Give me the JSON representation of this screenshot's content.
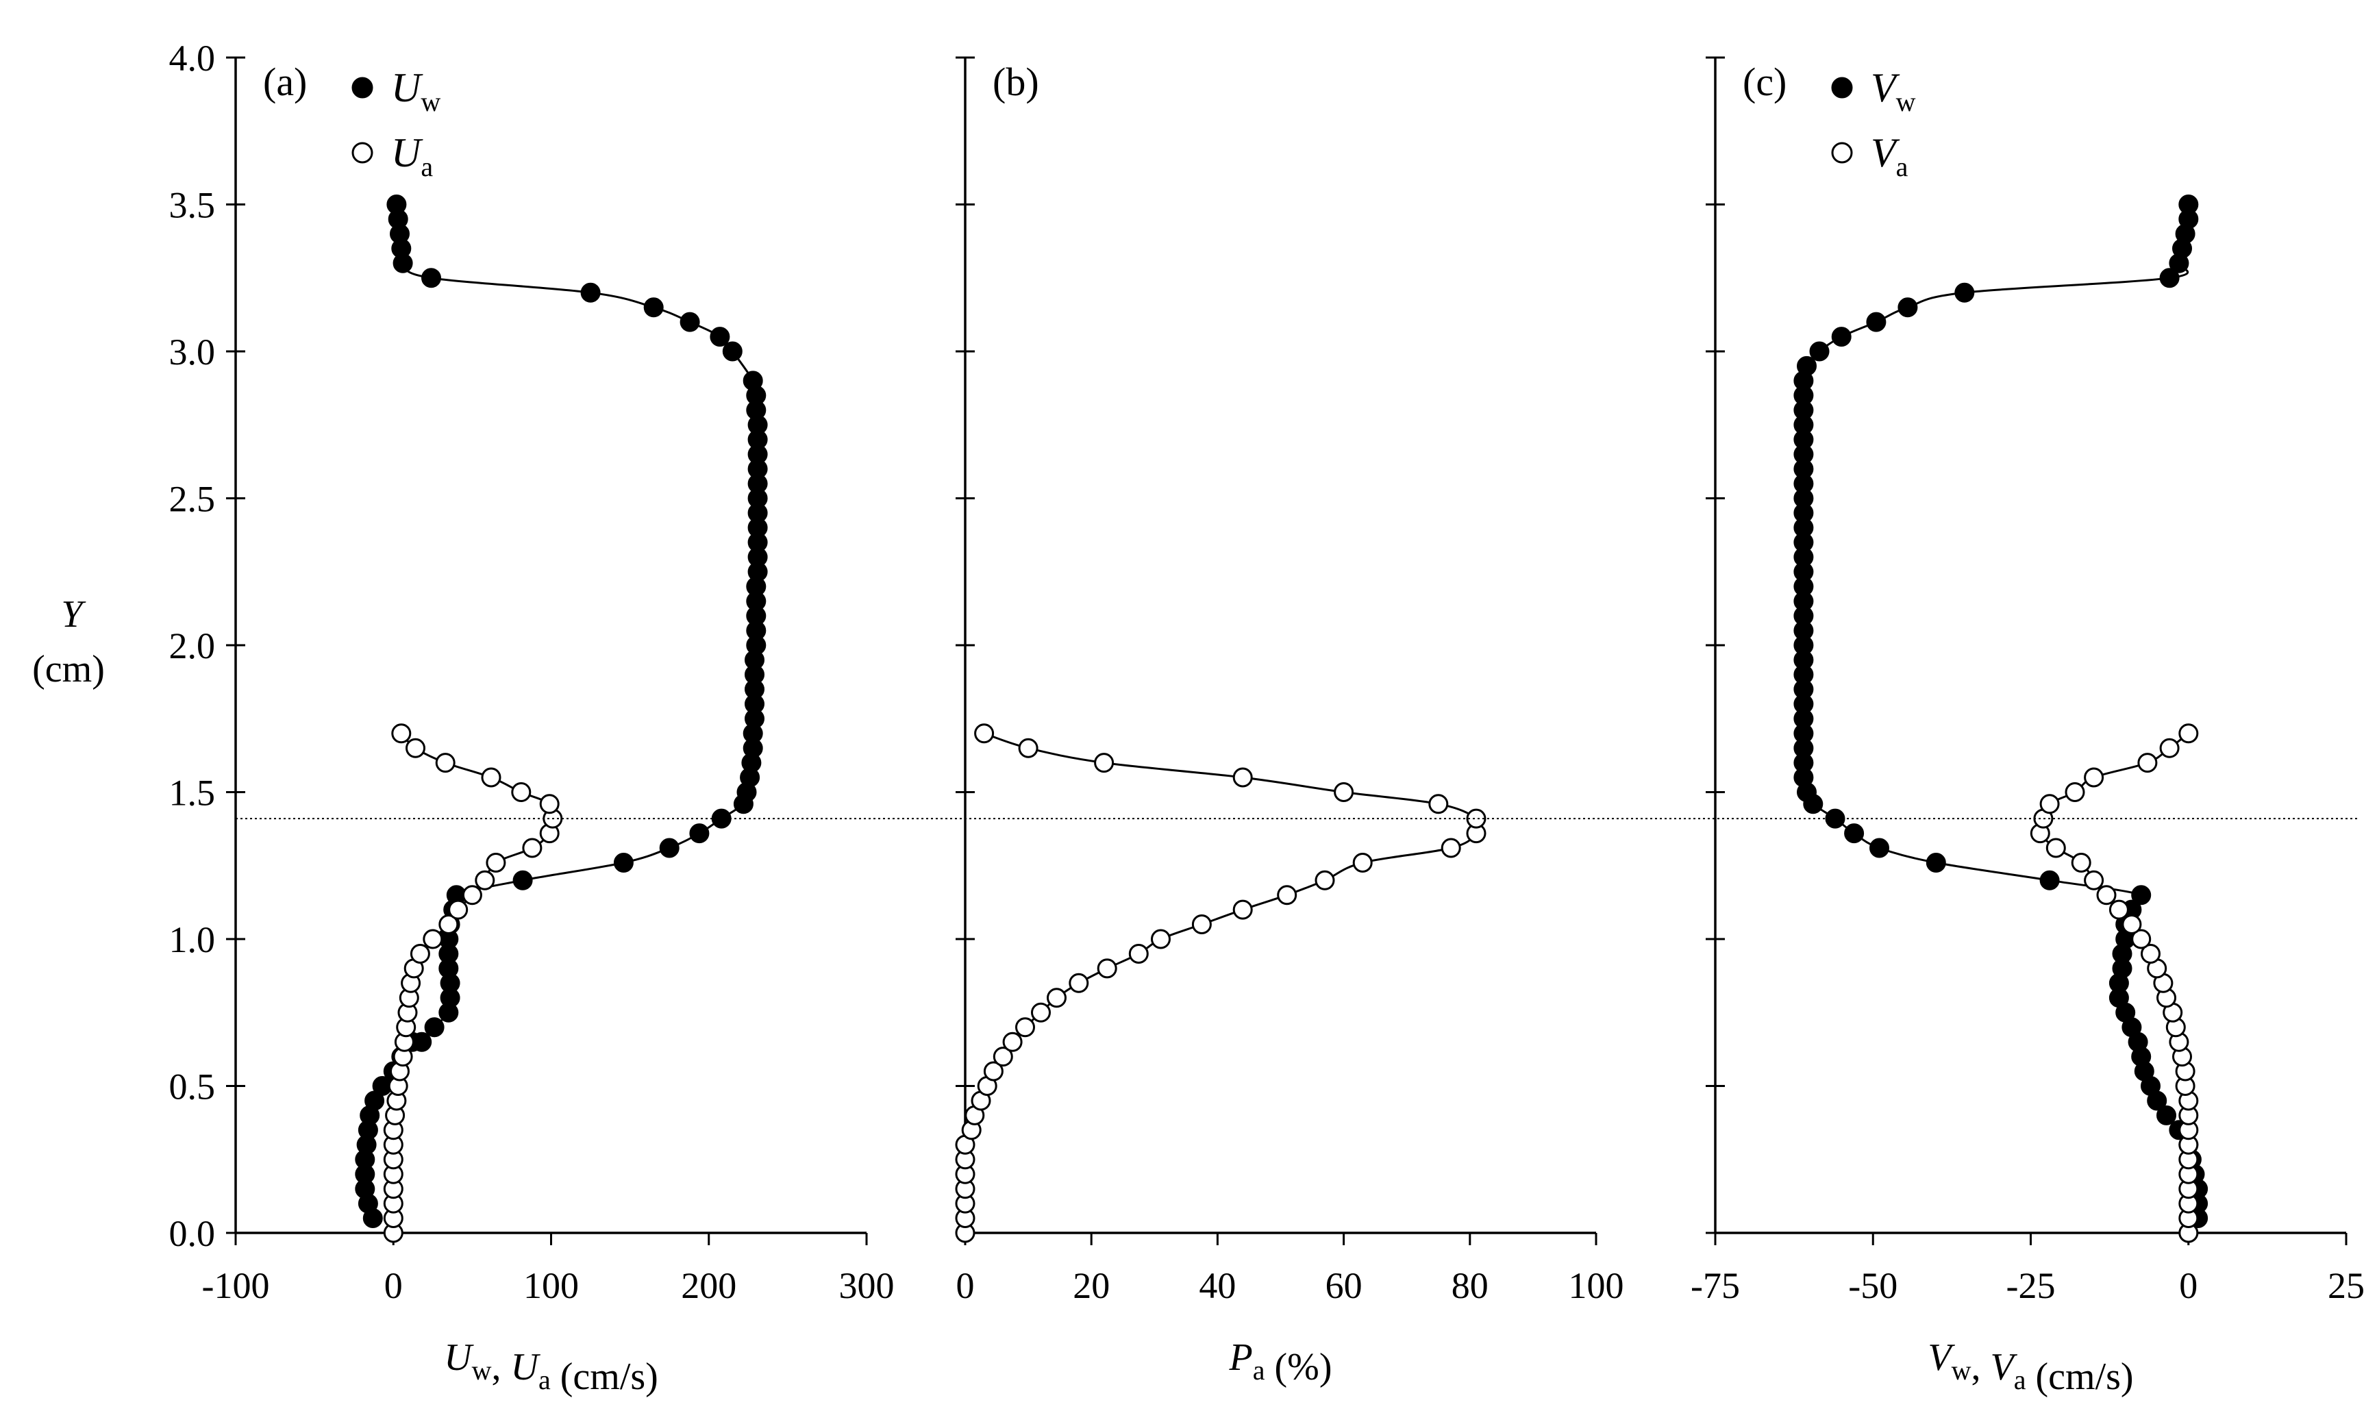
{
  "y_axis": {
    "label": "Y",
    "unit": "(cm)",
    "ticks": [
      "0.0",
      "0.5",
      "1.0",
      "1.5",
      "2.0",
      "2.5",
      "3.0",
      "3.5",
      "4.0"
    ]
  },
  "reference_line_y": 1.41,
  "chart_data": [
    {
      "type": "line",
      "panel_label": "(a)",
      "xlabel": {
        "parts": [
          {
            "italic": "U",
            "sub": "w"
          },
          {
            "text": ", "
          },
          {
            "italic": "U",
            "sub": "a"
          },
          {
            "text": " (cm/s)"
          }
        ]
      },
      "xlim": [
        -100,
        300
      ],
      "ylim": [
        0,
        4
      ],
      "xticks": [
        -100,
        0,
        100,
        200,
        300
      ],
      "xtick_labels": [
        "-100",
        "0",
        "100",
        "200",
        "300"
      ],
      "yticks": [
        0,
        0.5,
        1,
        1.5,
        2,
        2.5,
        3,
        3.5,
        4
      ],
      "legend": [
        {
          "marker": "filled",
          "sym": "U",
          "sub": "w"
        },
        {
          "marker": "open",
          "sym": "U",
          "sub": "a"
        }
      ],
      "series": [
        {
          "name": "Uw",
          "marker": "filled",
          "points": [
            [
              -13,
              0.05
            ],
            [
              -16,
              0.1
            ],
            [
              -18,
              0.15
            ],
            [
              -18,
              0.2
            ],
            [
              -18,
              0.25
            ],
            [
              -17,
              0.3
            ],
            [
              -16,
              0.35
            ],
            [
              -15,
              0.4
            ],
            [
              -12,
              0.45
            ],
            [
              -7,
              0.5
            ],
            [
              0,
              0.55
            ],
            [
              5,
              0.6
            ],
            [
              12,
              0.65
            ],
            [
              18,
              0.65
            ],
            [
              26,
              0.7
            ],
            [
              35,
              0.75
            ],
            [
              36,
              0.8
            ],
            [
              36,
              0.85
            ],
            [
              35,
              0.9
            ],
            [
              35,
              0.95
            ],
            [
              35,
              1.0
            ],
            [
              36,
              1.05
            ],
            [
              38,
              1.1
            ],
            [
              40,
              1.15
            ],
            [
              82,
              1.2
            ],
            [
              146,
              1.26
            ],
            [
              175,
              1.31
            ],
            [
              194,
              1.36
            ],
            [
              208,
              1.41
            ],
            [
              222,
              1.46
            ],
            [
              224,
              1.5
            ],
            [
              226,
              1.55
            ],
            [
              227,
              1.6
            ],
            [
              228,
              1.65
            ],
            [
              228,
              1.7
            ],
            [
              229,
              1.75
            ],
            [
              229,
              1.8
            ],
            [
              229,
              1.85
            ],
            [
              229,
              1.9
            ],
            [
              229,
              1.95
            ],
            [
              230,
              2.0
            ],
            [
              230,
              2.05
            ],
            [
              230,
              2.1
            ],
            [
              230,
              2.15
            ],
            [
              230,
              2.2
            ],
            [
              231,
              2.25
            ],
            [
              231,
              2.3
            ],
            [
              231,
              2.35
            ],
            [
              231,
              2.4
            ],
            [
              231,
              2.45
            ],
            [
              231,
              2.5
            ],
            [
              231,
              2.55
            ],
            [
              231,
              2.6
            ],
            [
              231,
              2.65
            ],
            [
              231,
              2.7
            ],
            [
              231,
              2.75
            ],
            [
              230,
              2.8
            ],
            [
              230,
              2.85
            ],
            [
              228,
              2.9
            ],
            [
              215,
              3.0
            ],
            [
              207,
              3.05
            ],
            [
              188,
              3.1
            ],
            [
              165,
              3.15
            ],
            [
              125,
              3.2
            ],
            [
              24,
              3.25
            ],
            [
              6,
              3.3
            ],
            [
              5,
              3.35
            ],
            [
              4,
              3.4
            ],
            [
              3,
              3.45
            ],
            [
              2,
              3.5
            ]
          ]
        },
        {
          "name": "Ua",
          "marker": "open",
          "points": [
            [
              0,
              0.0
            ],
            [
              0,
              0.05
            ],
            [
              0,
              0.1
            ],
            [
              0,
              0.15
            ],
            [
              0,
              0.2
            ],
            [
              0,
              0.25
            ],
            [
              0,
              0.3
            ],
            [
              0,
              0.35
            ],
            [
              1,
              0.4
            ],
            [
              2,
              0.45
            ],
            [
              3,
              0.5
            ],
            [
              4,
              0.55
            ],
            [
              6,
              0.6
            ],
            [
              7,
              0.65
            ],
            [
              8,
              0.7
            ],
            [
              9,
              0.75
            ],
            [
              10,
              0.8
            ],
            [
              11,
              0.85
            ],
            [
              13,
              0.9
            ],
            [
              17,
              0.95
            ],
            [
              25,
              1.0
            ],
            [
              35,
              1.05
            ],
            [
              41,
              1.1
            ],
            [
              50,
              1.15
            ],
            [
              58,
              1.2
            ],
            [
              65,
              1.26
            ],
            [
              88,
              1.31
            ],
            [
              99,
              1.36
            ],
            [
              101,
              1.41
            ],
            [
              99,
              1.46
            ],
            [
              81,
              1.5
            ],
            [
              62,
              1.55
            ],
            [
              33,
              1.6
            ],
            [
              14,
              1.65
            ],
            [
              5,
              1.7
            ]
          ]
        }
      ]
    },
    {
      "type": "line",
      "panel_label": "(b)",
      "xlabel": {
        "parts": [
          {
            "italic": "P",
            "sub": "a"
          },
          {
            "text": " (%)"
          }
        ]
      },
      "xlim": [
        0,
        100
      ],
      "ylim": [
        0,
        4
      ],
      "xticks": [
        0,
        20,
        40,
        60,
        80,
        100
      ],
      "xtick_labels": [
        "0",
        "20",
        "40",
        "60",
        "80",
        "100"
      ],
      "yticks": [
        0,
        0.5,
        1,
        1.5,
        2,
        2.5,
        3,
        3.5,
        4
      ],
      "legend": [],
      "series": [
        {
          "name": "Pa",
          "marker": "open",
          "points": [
            [
              0,
              0.0
            ],
            [
              0,
              0.05
            ],
            [
              0,
              0.1
            ],
            [
              0,
              0.15
            ],
            [
              0,
              0.2
            ],
            [
              0,
              0.25
            ],
            [
              0,
              0.3
            ],
            [
              1,
              0.35
            ],
            [
              1.5,
              0.4
            ],
            [
              2.5,
              0.45
            ],
            [
              3.5,
              0.5
            ],
            [
              4.5,
              0.55
            ],
            [
              6,
              0.6
            ],
            [
              7.5,
              0.65
            ],
            [
              9.5,
              0.7
            ],
            [
              12,
              0.75
            ],
            [
              14.5,
              0.8
            ],
            [
              18,
              0.85
            ],
            [
              22.5,
              0.9
            ],
            [
              27.5,
              0.95
            ],
            [
              31,
              1.0
            ],
            [
              37.5,
              1.05
            ],
            [
              44,
              1.1
            ],
            [
              51,
              1.15
            ],
            [
              57,
              1.2
            ],
            [
              63,
              1.26
            ],
            [
              77,
              1.31
            ],
            [
              81,
              1.36
            ],
            [
              81,
              1.41
            ],
            [
              75,
              1.46
            ],
            [
              60,
              1.5
            ],
            [
              44,
              1.55
            ],
            [
              22,
              1.6
            ],
            [
              10,
              1.65
            ],
            [
              3,
              1.7
            ]
          ]
        }
      ]
    },
    {
      "type": "line",
      "panel_label": "(c)",
      "xlabel": {
        "parts": [
          {
            "italic": "V",
            "sub": "w"
          },
          {
            "text": ", "
          },
          {
            "italic": "V",
            "sub": "a"
          },
          {
            "text": " (cm/s)"
          }
        ]
      },
      "xlim": [
        -75,
        25
      ],
      "ylim": [
        0,
        4
      ],
      "xticks": [
        -75,
        -50,
        -25,
        0,
        25
      ],
      "xtick_labels": [
        "-75",
        "-50",
        "-25",
        "0",
        "25"
      ],
      "yticks": [
        0,
        0.5,
        1,
        1.5,
        2,
        2.5,
        3,
        3.5,
        4
      ],
      "legend": [
        {
          "marker": "filled",
          "sym": "V",
          "sub": "w"
        },
        {
          "marker": "open",
          "sym": "V",
          "sub": "a"
        }
      ],
      "series": [
        {
          "name": "Vw",
          "marker": "filled",
          "points": [
            [
              0,
              0.0
            ],
            [
              1.5,
              0.05
            ],
            [
              1.5,
              0.1
            ],
            [
              1.5,
              0.15
            ],
            [
              1,
              0.2
            ],
            [
              0.5,
              0.25
            ],
            [
              0,
              0.3
            ],
            [
              -1.5,
              0.35
            ],
            [
              -3.5,
              0.4
            ],
            [
              -5,
              0.45
            ],
            [
              -6,
              0.5
            ],
            [
              -7,
              0.55
            ],
            [
              -7.5,
              0.6
            ],
            [
              -8,
              0.65
            ],
            [
              -9,
              0.7
            ],
            [
              -10,
              0.75
            ],
            [
              -11,
              0.8
            ],
            [
              -11,
              0.85
            ],
            [
              -10.5,
              0.9
            ],
            [
              -10.5,
              0.95
            ],
            [
              -10,
              1.0
            ],
            [
              -10,
              1.05
            ],
            [
              -9,
              1.1
            ],
            [
              -7.5,
              1.15
            ],
            [
              -22,
              1.2
            ],
            [
              -40,
              1.26
            ],
            [
              -49,
              1.31
            ],
            [
              -53,
              1.36
            ],
            [
              -56,
              1.41
            ],
            [
              -59.5,
              1.46
            ],
            [
              -60.5,
              1.5
            ],
            [
              -61,
              1.55
            ],
            [
              -61,
              1.6
            ],
            [
              -61,
              1.65
            ],
            [
              -61,
              1.7
            ],
            [
              -61,
              1.75
            ],
            [
              -61,
              1.8
            ],
            [
              -61,
              1.85
            ],
            [
              -61,
              1.9
            ],
            [
              -61,
              1.95
            ],
            [
              -61,
              2.0
            ],
            [
              -61,
              2.05
            ],
            [
              -61,
              2.1
            ],
            [
              -61,
              2.15
            ],
            [
              -61,
              2.2
            ],
            [
              -61,
              2.25
            ],
            [
              -61,
              2.3
            ],
            [
              -61,
              2.35
            ],
            [
              -61,
              2.4
            ],
            [
              -61,
              2.45
            ],
            [
              -61,
              2.5
            ],
            [
              -61,
              2.55
            ],
            [
              -61,
              2.6
            ],
            [
              -61,
              2.65
            ],
            [
              -61,
              2.7
            ],
            [
              -61,
              2.75
            ],
            [
              -61,
              2.8
            ],
            [
              -61,
              2.85
            ],
            [
              -61,
              2.9
            ],
            [
              -60.5,
              2.95
            ],
            [
              -58.5,
              3.0
            ],
            [
              -55,
              3.05
            ],
            [
              -49.5,
              3.1
            ],
            [
              -44.5,
              3.15
            ],
            [
              -35.5,
              3.2
            ],
            [
              -3,
              3.25
            ],
            [
              -1.5,
              3.3
            ],
            [
              -1,
              3.35
            ],
            [
              -0.5,
              3.4
            ],
            [
              0,
              3.45
            ],
            [
              0,
              3.5
            ]
          ]
        },
        {
          "name": "Va",
          "marker": "open",
          "points": [
            [
              0,
              0.0
            ],
            [
              0,
              0.05
            ],
            [
              0,
              0.1
            ],
            [
              0,
              0.15
            ],
            [
              0,
              0.2
            ],
            [
              0,
              0.25
            ],
            [
              0,
              0.3
            ],
            [
              0,
              0.35
            ],
            [
              0,
              0.4
            ],
            [
              0,
              0.45
            ],
            [
              -0.5,
              0.5
            ],
            [
              -0.5,
              0.55
            ],
            [
              -1,
              0.6
            ],
            [
              -1.5,
              0.65
            ],
            [
              -2,
              0.7
            ],
            [
              -2.5,
              0.75
            ],
            [
              -3.5,
              0.8
            ],
            [
              -4,
              0.85
            ],
            [
              -5,
              0.9
            ],
            [
              -6,
              0.95
            ],
            [
              -7.5,
              1.0
            ],
            [
              -9,
              1.05
            ],
            [
              -11,
              1.1
            ],
            [
              -13,
              1.15
            ],
            [
              -15,
              1.2
            ],
            [
              -17,
              1.26
            ],
            [
              -21,
              1.31
            ],
            [
              -23.5,
              1.36
            ],
            [
              -23,
              1.41
            ],
            [
              -22,
              1.46
            ],
            [
              -18,
              1.5
            ],
            [
              -15,
              1.55
            ],
            [
              -6.5,
              1.6
            ],
            [
              -3,
              1.65
            ],
            [
              0,
              1.7
            ]
          ]
        }
      ]
    }
  ]
}
